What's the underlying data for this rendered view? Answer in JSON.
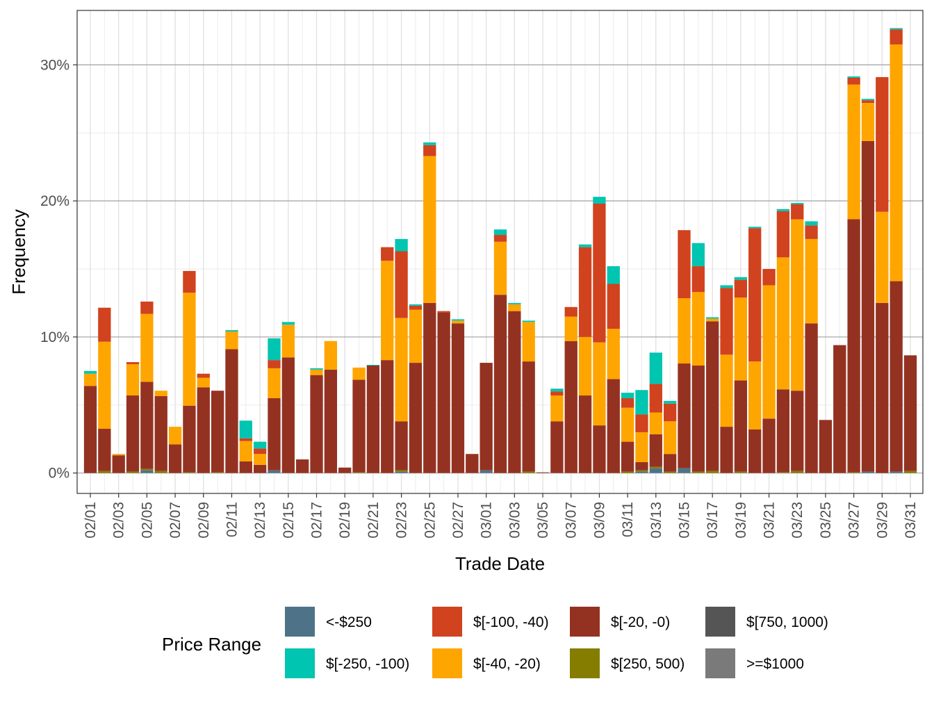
{
  "chart_data": {
    "type": "bar",
    "stacked": true,
    "xlabel": "Trade Date",
    "ylabel": "Frequency",
    "ylim": [
      -1.5,
      34
    ],
    "y_ticks": [
      "0%",
      "10%",
      "20%",
      "30%"
    ],
    "y_tick_values": [
      0,
      10,
      20,
      30
    ],
    "grid": true,
    "legend_title": "Price Range",
    "legend_position": "bottom",
    "legend_columns": [
      [
        "<-$250",
        "$[-250, -100)"
      ],
      [
        "$[-100, -40)",
        "$[-40, -20)"
      ],
      [
        "$[-20, -0)",
        "$[250, 500)"
      ],
      [
        "$[750, 1000)",
        ">=$1000"
      ]
    ],
    "categories": [
      "02/01",
      "02/02",
      "02/03",
      "02/04",
      "02/05",
      "02/06",
      "02/07",
      "02/08",
      "02/09",
      "02/10",
      "02/11",
      "02/12",
      "02/13",
      "02/14",
      "02/15",
      "02/16",
      "02/17",
      "02/18",
      "02/19",
      "02/20",
      "02/21",
      "02/22",
      "02/23",
      "02/24",
      "02/25",
      "02/26",
      "02/27",
      "02/28",
      "03/01",
      "03/02",
      "03/03",
      "03/04",
      "03/05",
      "03/06",
      "03/07",
      "03/08",
      "03/09",
      "03/10",
      "03/11",
      "03/12",
      "03/13",
      "03/14",
      "03/15",
      "03/16",
      "03/17",
      "03/18",
      "03/19",
      "03/20",
      "03/21",
      "03/22",
      "03/23",
      "03/24",
      "03/25",
      "03/26",
      "03/27",
      "03/28",
      "03/29",
      "03/30",
      "03/31"
    ],
    "x_tick_labels": [
      "02/01",
      "02/03",
      "02/05",
      "02/07",
      "02/09",
      "02/11",
      "02/13",
      "02/15",
      "02/17",
      "02/19",
      "02/21",
      "02/23",
      "02/25",
      "02/27",
      "03/01",
      "03/03",
      "03/05",
      "03/07",
      "03/09",
      "03/11",
      "03/13",
      "03/15",
      "03/17",
      "03/19",
      "03/21",
      "03/23",
      "03/25",
      "03/27",
      "03/29",
      "03/31"
    ],
    "series": [
      {
        "name": ">=$1000",
        "color": "#7a7a7a",
        "values": [
          0,
          0,
          0,
          0,
          0,
          0,
          0,
          0,
          0,
          0,
          0,
          0,
          0,
          0,
          0,
          0,
          0,
          0,
          0,
          0,
          0,
          0,
          0,
          0,
          0,
          0,
          0,
          0,
          0,
          0,
          0,
          0,
          0,
          0,
          0,
          0,
          0,
          0,
          0,
          0,
          0,
          0,
          0,
          0,
          0,
          0,
          0,
          0,
          0,
          0,
          0,
          0,
          0,
          0,
          0,
          0,
          0,
          0,
          0
        ]
      },
      {
        "name": "<-$250",
        "color": "#4e7389",
        "values": [
          0,
          0,
          0,
          0,
          0.2,
          0,
          0,
          0,
          0,
          0,
          0,
          0,
          0,
          0.2,
          0,
          0,
          0,
          0,
          0,
          0,
          0,
          0,
          0.1,
          0,
          0,
          0,
          0,
          0,
          0.2,
          0,
          0,
          0,
          0,
          0,
          0,
          0,
          0,
          0,
          0,
          0.1,
          0.35,
          0,
          0.35,
          0,
          0,
          0,
          0,
          0,
          0,
          0,
          0,
          0,
          0,
          0,
          0,
          0.1,
          0,
          0.1,
          0
        ]
      },
      {
        "name": "$[250, 500)",
        "color": "#857d00",
        "values": [
          0,
          0.15,
          0,
          0.1,
          0.1,
          0.15,
          0,
          0.05,
          0,
          0.05,
          0,
          0,
          0,
          0,
          0,
          0,
          0,
          0,
          0,
          0.05,
          0,
          0,
          0.1,
          0,
          0,
          0,
          0,
          0,
          0,
          0,
          0,
          0.1,
          0,
          0,
          0,
          0,
          0,
          0,
          0.1,
          0.1,
          0.1,
          0.1,
          0,
          0.1,
          0.15,
          0,
          0.1,
          0,
          0,
          0.05,
          0.15,
          0,
          0,
          0,
          0.05,
          0,
          0,
          0,
          0.15
        ]
      },
      {
        "name": "$[750, 1000)",
        "color": "#555555",
        "values": [
          0,
          0,
          0,
          0,
          0,
          0,
          0,
          0,
          0,
          0,
          0,
          0,
          0,
          0,
          0,
          0,
          0,
          0,
          0,
          0,
          0,
          0,
          0,
          0,
          0,
          0,
          0,
          0,
          0,
          0,
          0,
          0,
          0,
          0,
          0,
          0,
          0,
          0,
          0,
          0,
          0,
          0,
          0,
          0,
          0,
          0,
          0,
          0,
          0,
          0,
          0,
          0,
          0,
          0,
          0,
          0,
          0,
          0,
          0
        ]
      },
      {
        "name": "$[-20, -0)",
        "color": "#943222",
        "values": [
          6.4,
          3.1,
          1.3,
          5.6,
          6.4,
          5.5,
          2.1,
          4.9,
          6.3,
          6.0,
          9.1,
          0.85,
          0.6,
          5.3,
          8.5,
          1.0,
          7.2,
          7.6,
          0.4,
          6.8,
          7.9,
          8.3,
          3.6,
          8.1,
          12.5,
          11.8,
          11.0,
          1.4,
          7.9,
          13.1,
          11.9,
          8.1,
          0.05,
          3.8,
          9.7,
          5.7,
          3.5,
          6.9,
          2.2,
          0.6,
          2.4,
          1.3,
          7.7,
          7.8,
          11.0,
          3.4,
          6.7,
          3.2,
          4.0,
          6.1,
          5.9,
          11.0,
          3.9,
          9.4,
          18.6,
          24.3,
          12.5,
          14.0,
          8.5
        ]
      },
      {
        "name": "$[-40, -20)",
        "color": "#ffa500",
        "values": [
          0.9,
          6.4,
          0.1,
          2.3,
          5.0,
          0.4,
          1.3,
          8.3,
          0.7,
          0,
          1.3,
          1.5,
          0.8,
          2.2,
          2.4,
          0,
          0.4,
          2.1,
          0,
          0.9,
          0,
          7.3,
          7.6,
          3.9,
          10.8,
          0,
          0.2,
          0,
          0,
          3.9,
          0.5,
          2.9,
          0,
          1.9,
          1.8,
          4.3,
          6.1,
          3.7,
          2.5,
          2.2,
          1.6,
          2.4,
          4.8,
          5.4,
          0.2,
          5.3,
          6.1,
          5.0,
          9.8,
          9.7,
          12.6,
          6.2,
          0,
          0,
          9.9,
          2.8,
          6.7,
          17.4,
          0
        ]
      },
      {
        "name": "$[-100, -40)",
        "color": "#d1421e",
        "values": [
          0,
          2.5,
          0,
          0.15,
          0.9,
          0,
          0,
          1.6,
          0.3,
          0,
          0,
          0.2,
          0.4,
          0.6,
          0,
          0,
          0,
          0,
          0,
          0,
          0,
          1.0,
          4.9,
          0.3,
          0.8,
          0.1,
          0,
          0,
          0,
          0.5,
          0,
          0,
          0,
          0.3,
          0.7,
          6.6,
          10.2,
          3.3,
          0.7,
          1.3,
          2.1,
          1.3,
          5.0,
          1.9,
          0,
          4.9,
          1.3,
          9.8,
          1.2,
          3.4,
          1.1,
          1.0,
          0,
          0,
          0.5,
          0.2,
          9.9,
          1.1,
          0
        ]
      },
      {
        "name": "$[-250, -100)",
        "color": "#00c5b0",
        "values": [
          0.2,
          0,
          0,
          0,
          0,
          0,
          0,
          0,
          0,
          0,
          0.1,
          1.3,
          0.5,
          1.6,
          0.2,
          0,
          0.1,
          0,
          0,
          0,
          0.05,
          0,
          0.9,
          0.1,
          0.2,
          0,
          0.1,
          0,
          0,
          0.4,
          0.1,
          0.1,
          0,
          0.2,
          0,
          0.2,
          0.5,
          1.3,
          0.4,
          1.8,
          2.3,
          0.2,
          0,
          1.7,
          0.1,
          0.2,
          0.2,
          0.1,
          0,
          0.15,
          0.1,
          0.3,
          0,
          0,
          0.1,
          0.1,
          0,
          0.1,
          0
        ]
      }
    ]
  }
}
